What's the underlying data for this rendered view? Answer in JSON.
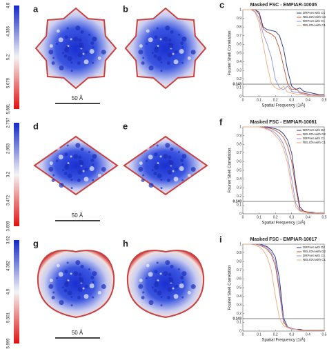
{
  "rows": [
    {
      "colorbar_labels": [
        "4.8",
        "4.385",
        "5.2",
        "5.079",
        "5.881"
      ],
      "map_letters": [
        "a",
        "b"
      ],
      "scale_bar": "50 Å",
      "chart_letter": "c"
    },
    {
      "colorbar_labels": [
        "2.757",
        "2.953",
        "3.2",
        "3.472",
        "3.699"
      ],
      "map_letters": [
        "d",
        "e"
      ],
      "scale_bar": "50 Å",
      "chart_letter": "f"
    },
    {
      "colorbar_labels": [
        "3.92",
        "4.382",
        "4.9",
        "5.501",
        "5.999"
      ],
      "map_letters": [
        "g",
        "h"
      ],
      "scale_bar": "50 Å",
      "chart_letter": "i"
    }
  ],
  "chart_data": [
    {
      "type": "line",
      "title": "Masked FSC - EMPIAR-10005",
      "x_label": "Spatial Frequency (1/Å)",
      "y_label": "Fourier Shell Correlation",
      "x": [
        0,
        0.025,
        0.05,
        0.075,
        0.1,
        0.125,
        0.15,
        0.175,
        0.2,
        0.225,
        0.25,
        0.275,
        0.3,
        0.325,
        0.35,
        0.375,
        0.4,
        0.425,
        0.45,
        0.475,
        0.5
      ],
      "series": [
        {
          "name": "DRPnet with C4",
          "color": "#1f2a80",
          "values": [
            1,
            1,
            1,
            1,
            0.97,
            0.8,
            0.77,
            0.76,
            0.75,
            0.7,
            0.55,
            0.3,
            0.12,
            0.08,
            0.1,
            0.06,
            0.05,
            0.04,
            0.03,
            0.02,
            0.02
          ]
        },
        {
          "name": "RELION with C4",
          "color": "#c0502a",
          "values": [
            1,
            1,
            1,
            1,
            0.95,
            0.78,
            0.74,
            0.72,
            0.68,
            0.55,
            0.35,
            0.15,
            0.08,
            0.09,
            0.05,
            0.04,
            0.03,
            0.02,
            0.02,
            0.01,
            0.01
          ]
        },
        {
          "name": "DRPnet with C1",
          "color": "#8f8fd8",
          "values": [
            1,
            1,
            1,
            0.98,
            0.9,
            0.72,
            0.6,
            0.45,
            0.2,
            0.1,
            0.08,
            0.12,
            0.06,
            0.05,
            0.04,
            0.03,
            0.02,
            0.02,
            0.01,
            0.01,
            0.01
          ]
        },
        {
          "name": "RELION with C1",
          "color": "#f0a878",
          "values": [
            1,
            1,
            1,
            0.97,
            0.85,
            0.6,
            0.35,
            0.15,
            0.1,
            0.08,
            0.12,
            0.05,
            0.04,
            0.03,
            0.02,
            0.02,
            0.01,
            0.01,
            0.01,
            0.01,
            0.01
          ]
        }
      ],
      "xlim": [
        0,
        0.5
      ],
      "xticks": [
        0,
        0.1,
        0.2,
        0.3,
        0.4,
        0.5
      ],
      "ylim": [
        0,
        1
      ],
      "yticks": [
        0,
        0.1,
        0.143,
        0.2,
        0.3,
        0.4,
        0.5,
        0.6,
        0.7,
        0.8,
        0.9,
        1
      ],
      "hline": 0.143,
      "legend": "upper right"
    },
    {
      "type": "line",
      "title": "Masked FSC - EMPIAR-10061",
      "x_label": "Spatial Frequency (1/Å)",
      "y_label": "Fourier Shell Correlation",
      "x": [
        0,
        0.025,
        0.05,
        0.075,
        0.1,
        0.125,
        0.15,
        0.175,
        0.2,
        0.225,
        0.25,
        0.275,
        0.3,
        0.325,
        0.35,
        0.375,
        0.4,
        0.425,
        0.45,
        0.475,
        0.5
      ],
      "series": [
        {
          "name": "DRPnet with D2",
          "color": "#1f2a80",
          "values": [
            1,
            1,
            1,
            1,
            1,
            1,
            1,
            0.99,
            0.98,
            0.96,
            0.92,
            0.85,
            0.7,
            0.35,
            0.08,
            0.03,
            0.02,
            0.02,
            0.01,
            0.01,
            0.01
          ]
        },
        {
          "name": "RELION with D2",
          "color": "#c0502a",
          "values": [
            1,
            1,
            1,
            1,
            1,
            1,
            0.99,
            0.98,
            0.96,
            0.93,
            0.88,
            0.78,
            0.6,
            0.3,
            0.05,
            0.03,
            0.02,
            0.01,
            0.01,
            0.01,
            0.01
          ]
        },
        {
          "name": "DRPnet with C1",
          "color": "#8f8fd8",
          "values": [
            1,
            1,
            1,
            1,
            1,
            0.99,
            0.98,
            0.96,
            0.93,
            0.88,
            0.8,
            0.65,
            0.4,
            0.12,
            0.04,
            0.02,
            0.01,
            0.01,
            0.01,
            0.01,
            0.01
          ]
        },
        {
          "name": "RELION with C1",
          "color": "#f0a878",
          "values": [
            1,
            1,
            1,
            1,
            1,
            0.99,
            0.97,
            0.95,
            0.9,
            0.85,
            0.75,
            0.58,
            0.3,
            0.08,
            0.03,
            0.02,
            0.01,
            0.01,
            0.01,
            0.01,
            0.01
          ]
        }
      ],
      "xlim": [
        0,
        0.5
      ],
      "xticks": [
        0,
        0.1,
        0.2,
        0.3,
        0.4,
        0.5
      ],
      "ylim": [
        0,
        1
      ],
      "yticks": [
        0,
        0.1,
        0.143,
        0.2,
        0.3,
        0.4,
        0.5,
        0.6,
        0.7,
        0.8,
        0.9,
        1
      ],
      "hline": 0.143,
      "legend": "upper right"
    },
    {
      "type": "line",
      "title": "Masked FSC - EMPIAR-10017",
      "x_label": "Spatial Frequency (1/Å)",
      "y_label": "Fourier Shell Correlation",
      "x": [
        0,
        0.025,
        0.05,
        0.075,
        0.1,
        0.125,
        0.15,
        0.175,
        0.2,
        0.225,
        0.25,
        0.275,
        0.3,
        0.325,
        0.35,
        0.375,
        0.4,
        0.425,
        0.45,
        0.475,
        0.5
      ],
      "series": [
        {
          "name": "DRPnet with D2",
          "color": "#1f2a80",
          "values": [
            1,
            1,
            1,
            1,
            1,
            0.99,
            0.97,
            0.93,
            0.85,
            0.6,
            0.15,
            0.05,
            0.03,
            0.02,
            0.02,
            0.01,
            0.01,
            0.01,
            0.01,
            0.01,
            0.01
          ]
        },
        {
          "name": "RELION with D2",
          "color": "#c0502a",
          "values": [
            1,
            1,
            1,
            1,
            0.99,
            0.97,
            0.94,
            0.88,
            0.75,
            0.45,
            0.1,
            0.04,
            0.03,
            0.02,
            0.01,
            0.01,
            0.01,
            0.01,
            0.01,
            0.01,
            0.01
          ]
        },
        {
          "name": "DRPnet with C1",
          "color": "#8f8fd8",
          "values": [
            1,
            1,
            1,
            1,
            1,
            0.98,
            0.96,
            0.9,
            0.8,
            0.5,
            0.12,
            0.05,
            0.03,
            0.02,
            0.01,
            0.01,
            0.01,
            0.01,
            0.01,
            0.01,
            0.01
          ]
        },
        {
          "name": "RELION with C1",
          "color": "#f0a878",
          "values": [
            1,
            1,
            1,
            0.99,
            0.97,
            0.93,
            0.85,
            0.7,
            0.4,
            0.15,
            0.06,
            0.04,
            0.02,
            0.02,
            0.01,
            0.01,
            0.01,
            0.01,
            0.01,
            0.01,
            0.01
          ]
        }
      ],
      "xlim": [
        0,
        0.5
      ],
      "xticks": [
        0,
        0.1,
        0.2,
        0.3,
        0.4,
        0.5
      ],
      "ylim": [
        0,
        1
      ],
      "yticks": [
        0,
        0.1,
        0.143,
        0.2,
        0.3,
        0.4,
        0.5,
        0.6,
        0.7,
        0.8,
        0.9,
        1
      ],
      "hline": 0.143,
      "legend": "upper right"
    }
  ]
}
